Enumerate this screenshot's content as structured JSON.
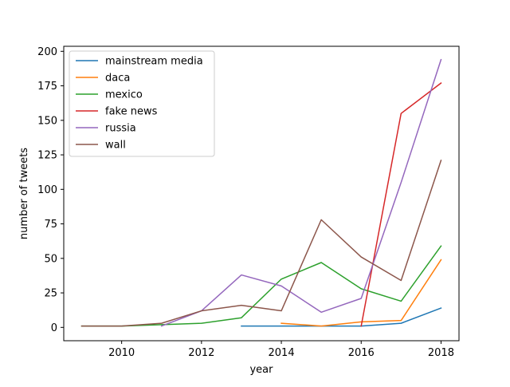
{
  "chart_data": {
    "type": "line",
    "title": "",
    "xlabel": "year",
    "ylabel": "number of tweets",
    "xlim": [
      2008.55,
      2018.45
    ],
    "ylim": [
      -9.65,
      203.65
    ],
    "xticks": [
      2010,
      2012,
      2014,
      2016,
      2018
    ],
    "yticks": [
      0,
      25,
      50,
      75,
      100,
      125,
      150,
      175,
      200
    ],
    "grid": false,
    "legend_position": "top-left",
    "series": [
      {
        "name": "mainstream media",
        "color": "#1f77b4",
        "x": [
          2013,
          2014,
          2015,
          2016,
          2017,
          2018
        ],
        "y": [
          1,
          1,
          1,
          1,
          3,
          14
        ]
      },
      {
        "name": "daca",
        "color": "#ff7f0e",
        "x": [
          2014,
          2015,
          2016,
          2017,
          2018
        ],
        "y": [
          3,
          1,
          4,
          5,
          49
        ]
      },
      {
        "name": "mexico",
        "color": "#2ca02c",
        "x": [
          2009,
          2010,
          2011,
          2012,
          2013,
          2014,
          2015,
          2016,
          2017,
          2018
        ],
        "y": [
          1,
          1,
          2,
          3,
          7,
          35,
          47,
          28,
          19,
          59
        ]
      },
      {
        "name": "fake news",
        "color": "#d62728",
        "x": [
          2016,
          2017,
          2018
        ],
        "y": [
          1,
          155,
          177
        ]
      },
      {
        "name": "russia",
        "color": "#9467bd",
        "x": [
          2011,
          2012,
          2013,
          2014,
          2015,
          2016,
          2017,
          2018
        ],
        "y": [
          1,
          12,
          38,
          30,
          11,
          21,
          105,
          194
        ]
      },
      {
        "name": "wall",
        "color": "#8c564b",
        "x": [
          2009,
          2010,
          2011,
          2012,
          2013,
          2014,
          2015,
          2016,
          2017,
          2018
        ],
        "y": [
          1,
          1,
          3,
          12,
          16,
          12,
          78,
          51,
          34,
          121
        ]
      }
    ]
  }
}
